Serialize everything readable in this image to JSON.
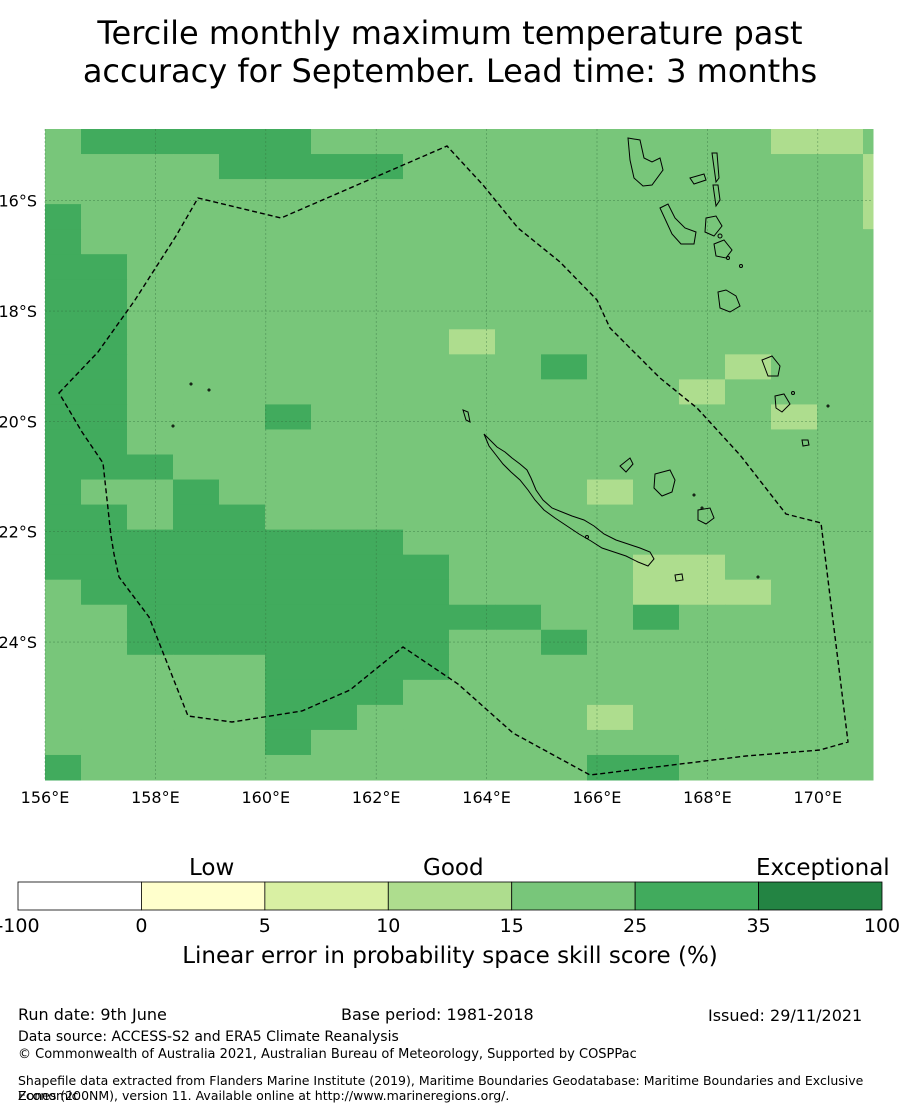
{
  "title_line1": "Tercile monthly maximum temperature past",
  "title_line2": "accuracy for September. Lead time: 3 months",
  "map": {
    "lon_range": [
      156,
      171
    ],
    "lat_range": [
      -26.5,
      -14.7
    ],
    "lon_ticks": [
      "156°E",
      "158°E",
      "160°E",
      "162°E",
      "164°E",
      "166°E",
      "168°E",
      "170°E"
    ],
    "lat_ticks": [
      "16°S",
      "18°S",
      "20°S",
      "22°S",
      "24°S"
    ],
    "colors": {
      "10-15": "#aedd8e",
      "15-25": "#78c67a",
      "25-35": "#41ab5d"
    },
    "cell_legend": "1 = 10–15%, 2 = 15–25%, 3 = 25–35%; rows top (north) to bottom (south), columns west to east",
    "grid": [
      "233333222222222211222",
      "222233332222222222122",
      "222222222222222222112",
      "322222222222222222112",
      "322222222222222222222",
      "332222222222222222222",
      "332222222222222222222",
      "332222222222222222212",
      "332222222122222222211",
      "332222222223222122211",
      "332222222222221222211",
      "332223222222222212222",
      "332222222222222222222",
      "333222222222222222222",
      "322322222222122222222",
      "332332222222222222222",
      "333333332222222222212",
      "333333333222211222212",
      "233333333222211122222",
      "223333333332232222222",
      "223333333223222222222",
      "222223333222222222222",
      "222223332222222222222",
      "222223322222122222222",
      "222223222222222222222",
      "322222222222332222222"
    ]
  },
  "colorbar": {
    "captions": [
      "Low",
      "Good",
      "Exceptional"
    ],
    "ticks": [
      "-100",
      "0",
      "5",
      "10",
      "15",
      "25",
      "35",
      "100"
    ],
    "colors": [
      "#ffffff",
      "#ffffcc",
      "#d9f0a3",
      "#aedd8e",
      "#78c67a",
      "#41ab5d",
      "#238443"
    ],
    "label": "Linear error in probability space skill score (%)"
  },
  "footer": {
    "run_date": "Run date: 9th June",
    "base_period": "Base period: 1981-2018",
    "issued": "Issued: 29/11/2021",
    "data_source": "Data source: ACCESS-S2 and ERA5 Climate Reanalysis",
    "copyright": "© Commonwealth of Australia 2021, Australian Bureau of Meteorology, Supported by COSPPac",
    "shapefile_line1": "Shapefile data extracted from Flanders Marine Institute (2019), Maritime Boundaries Geodatabase: Maritime Boundaries and Exclusive Economic",
    "shapefile_line2": "Zones (200NM), version 11. Available online at http://www.marineregions.org/."
  }
}
